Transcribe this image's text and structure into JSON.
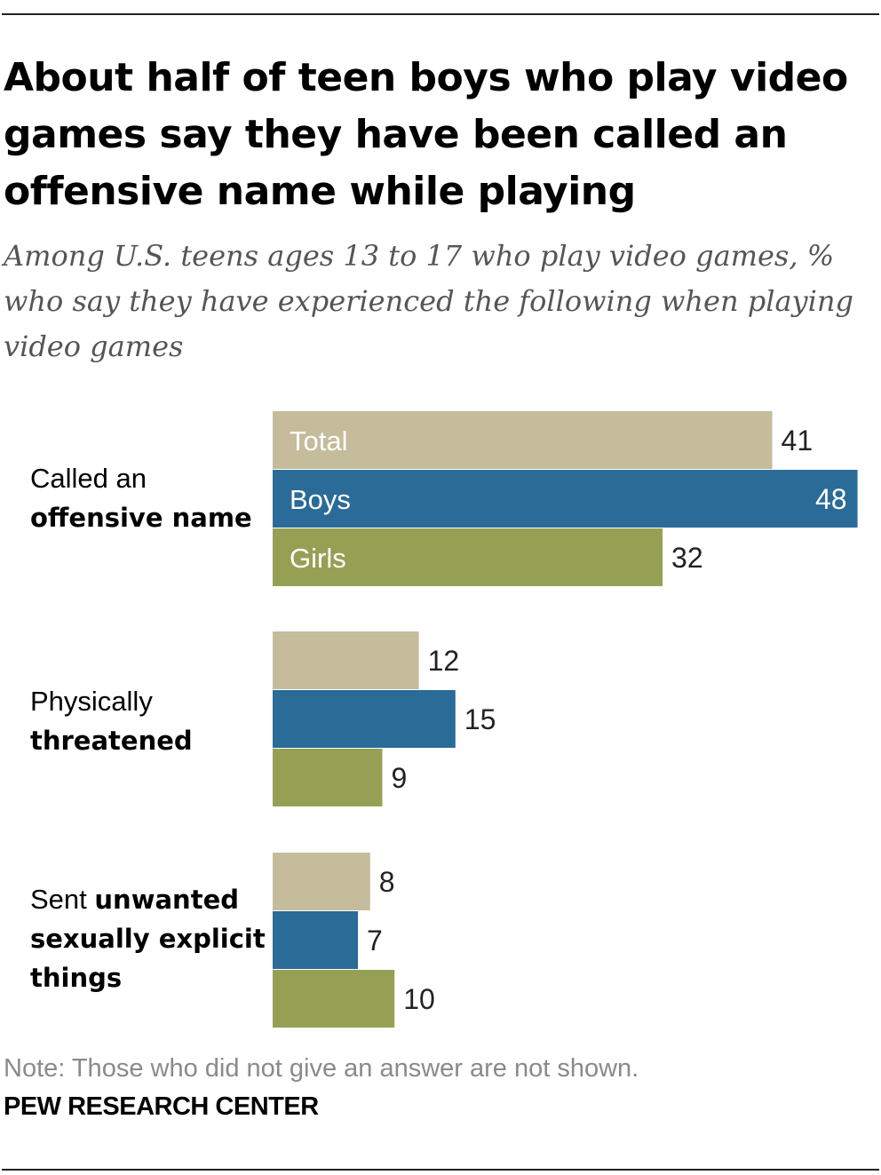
{
  "title": "About half of teen boys who play video games say they have been called an offensive name while playing",
  "subtitle": "Among U.S. teens ages 13 to 17 who play video games, % who say they have experienced the following when playing video games",
  "note": "Note: Those who did not give an answer are not shown.",
  "source": "PEW RESEARCH CENTER",
  "colors": {
    "total": "#c4bc9b",
    "boys": "#2a6b98",
    "girls": "#96a055",
    "rule": "#222222"
  },
  "categories": [
    {
      "label_plain": "Called an",
      "label_bold": "offensive name"
    },
    {
      "label_plain": "Physically",
      "label_bold": "threatened"
    },
    {
      "label_plain": "Sent",
      "label_bold": "unwanted sexually explicit things"
    }
  ],
  "chart_data": {
    "type": "bar",
    "orientation": "horizontal",
    "categories": [
      "Called an offensive name",
      "Physically threatened",
      "Sent unwanted sexually explicit things"
    ],
    "series": [
      {
        "name": "Total",
        "values": [
          41,
          12,
          8
        ]
      },
      {
        "name": "Boys",
        "values": [
          48,
          15,
          7
        ]
      },
      {
        "name": "Girls",
        "values": [
          32,
          9,
          10
        ]
      }
    ],
    "legend": "inside first group bars",
    "grid": false
  }
}
